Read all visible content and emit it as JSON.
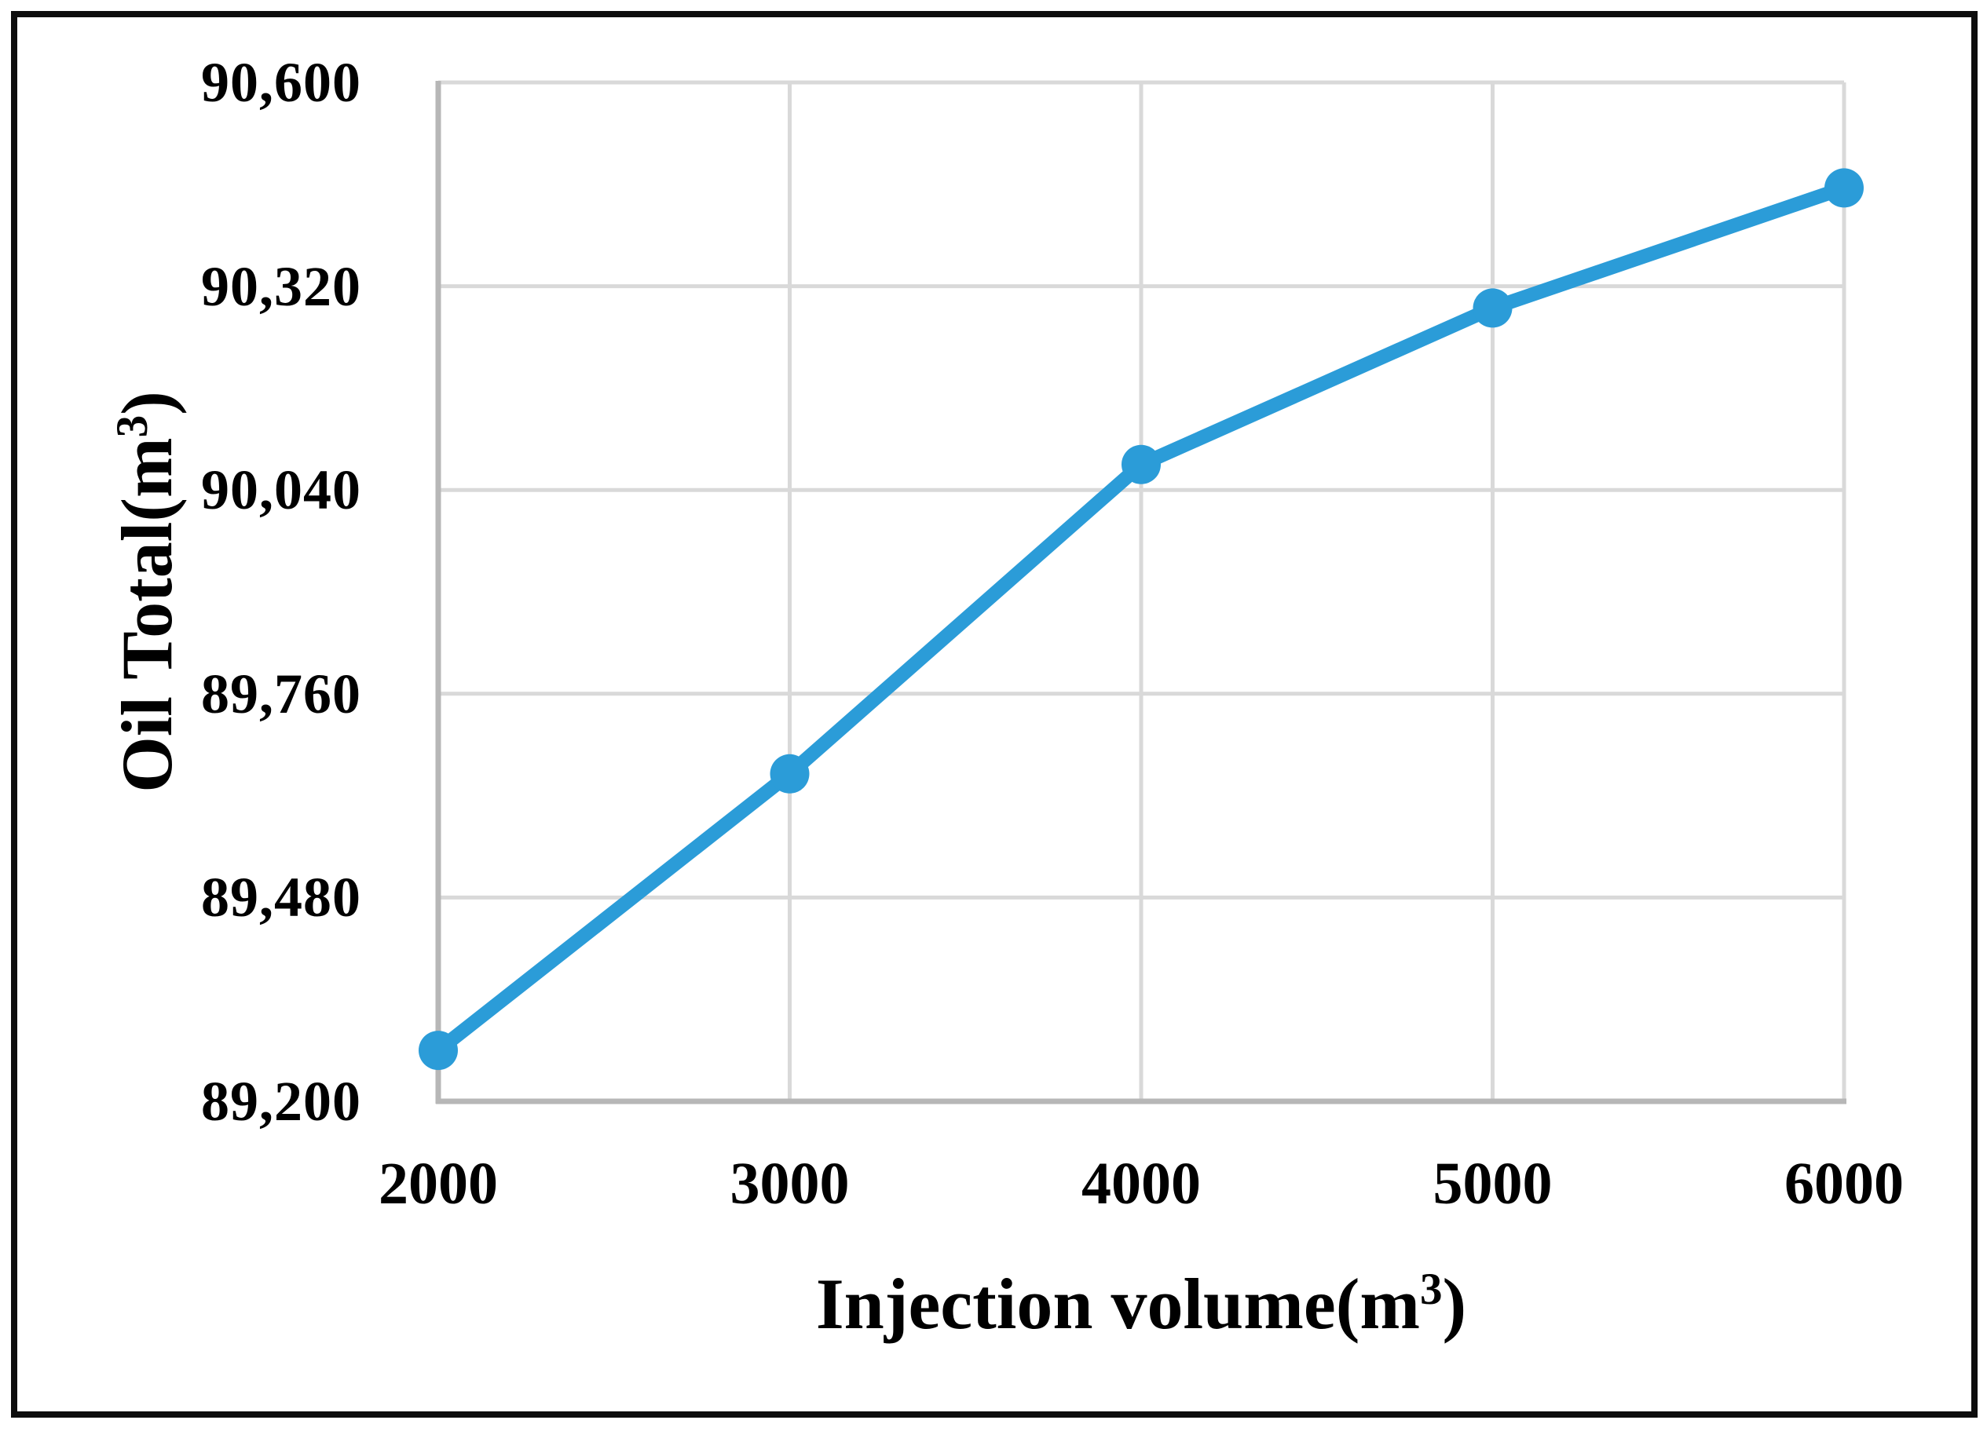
{
  "figure": {
    "background_color": "#ffffff",
    "border_color": "#0d0d0d"
  },
  "chart_data": {
    "type": "line",
    "title": "",
    "x": [
      2000,
      3000,
      4000,
      5000,
      6000
    ],
    "y": [
      89270,
      89650,
      90075,
      90290,
      90455
    ],
    "xlabel": "Injection volume(m³)",
    "ylabel": "Oil Total(m³)",
    "xlabel_parts": {
      "pre": "Injection volume(m",
      "sup": "3",
      "post": ")"
    },
    "ylabel_parts": {
      "pre": "Oil Total(m",
      "sup": "3",
      "post": ")"
    },
    "xlim": [
      2000,
      6000
    ],
    "ylim": [
      89200,
      90600
    ],
    "xticks": [
      {
        "value": 2000,
        "label": "2000"
      },
      {
        "value": 3000,
        "label": "3000"
      },
      {
        "value": 4000,
        "label": "4000"
      },
      {
        "value": 5000,
        "label": "5000"
      },
      {
        "value": 6000,
        "label": "6000"
      }
    ],
    "yticks": [
      {
        "value": 89200,
        "label": "89,200"
      },
      {
        "value": 89480,
        "label": "89,480"
      },
      {
        "value": 89760,
        "label": "89,760"
      },
      {
        "value": 90040,
        "label": "90,040"
      },
      {
        "value": 90320,
        "label": "90,320"
      },
      {
        "value": 90600,
        "label": "90,600"
      }
    ],
    "grid": true,
    "legend": false,
    "line_color": "#2B9CD8",
    "marker": "circle",
    "gridline_color": "#d9d9d9",
    "axis_line_color": "#b7b7b7"
  }
}
